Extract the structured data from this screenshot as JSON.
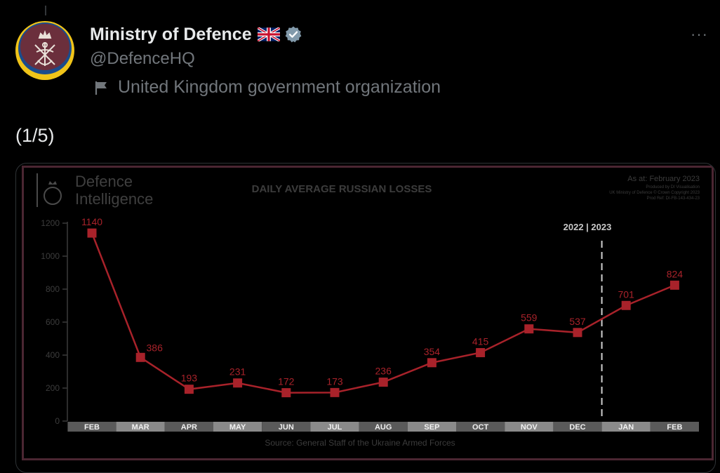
{
  "account": {
    "display_name": "Ministry of Defence",
    "handle": "@DefenceHQ",
    "affiliation": "United Kingdom government organization",
    "flag_icon": "uk-flag-icon",
    "verified_color": "#829aab"
  },
  "tweet": {
    "text": "(1/5)",
    "more_label": "···"
  },
  "infographic": {
    "brand_line1": "Defence",
    "brand_line2": "Intelligence",
    "title": "DAILY AVERAGE RUSSIAN LOSSES",
    "as_of": "As at: February 2023",
    "credit_1": "Produced by DI Visualisation",
    "credit_2": "UK Ministry of Defence © Crown Copyright 2023",
    "credit_3": "Prod Ref: DI-FB-143-434-23",
    "source": "Source: General Staff of the Ukraine Armed Forces",
    "year_divider": "2022 | 2023",
    "line_color": "#a8222a"
  },
  "chart_data": {
    "type": "line",
    "title": "DAILY AVERAGE RUSSIAN LOSSES",
    "categories": [
      "FEB",
      "MAR",
      "APR",
      "MAY",
      "JUN",
      "JUL",
      "AUG",
      "SEP",
      "OCT",
      "NOV",
      "DEC",
      "JAN",
      "FEB"
    ],
    "values": [
      1140,
      386,
      193,
      231,
      172,
      173,
      236,
      354,
      415,
      559,
      537,
      701,
      824
    ],
    "ylim": [
      0,
      1200
    ],
    "yticks": [
      0,
      200,
      400,
      600,
      800,
      1000,
      1200
    ],
    "xlabel": "",
    "ylabel": "",
    "divider_between": [
      "DEC",
      "JAN"
    ],
    "grid": false,
    "legend": "none"
  }
}
